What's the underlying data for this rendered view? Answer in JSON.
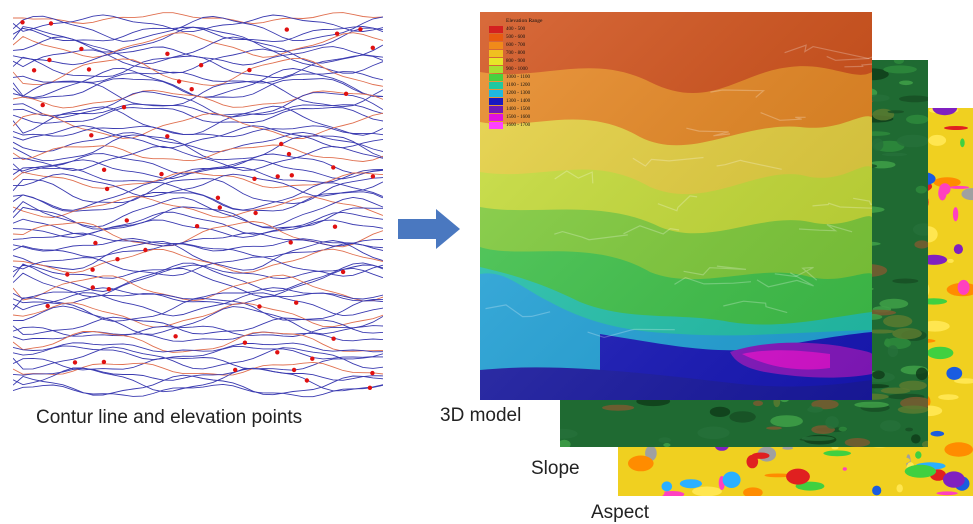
{
  "captions": {
    "contour": "Contur line and elevation points",
    "model3d": "3D model",
    "slope": "Slope",
    "aspect": "Aspect"
  },
  "legend": {
    "title": "Elevation Range",
    "items": [
      {
        "label": "400 - 500",
        "color": "#d42020"
      },
      {
        "label": "500 - 600",
        "color": "#e85a10"
      },
      {
        "label": "600 - 700",
        "color": "#f08a1a"
      },
      {
        "label": "700 - 800",
        "color": "#f0c020"
      },
      {
        "label": "800 - 900",
        "color": "#e8e628"
      },
      {
        "label": "900 - 1000",
        "color": "#a8e030"
      },
      {
        "label": "1000 - 1100",
        "color": "#48d040"
      },
      {
        "label": "1100 - 1200",
        "color": "#20c8a0"
      },
      {
        "label": "1200 - 1300",
        "color": "#20b8e0"
      },
      {
        "label": "1300 - 1400",
        "color": "#1818c0"
      },
      {
        "label": "1400 - 1500",
        "color": "#7018b8"
      },
      {
        "label": "1500 - 1600",
        "color": "#e010e0"
      },
      {
        "label": "1600 - 1700",
        "color": "#ff40ff"
      }
    ]
  },
  "colors": {
    "arrow": "#4a78c0",
    "contour_line": "#3a3ab0",
    "index_line": "#e07050",
    "elevation_point": "#e01010"
  }
}
